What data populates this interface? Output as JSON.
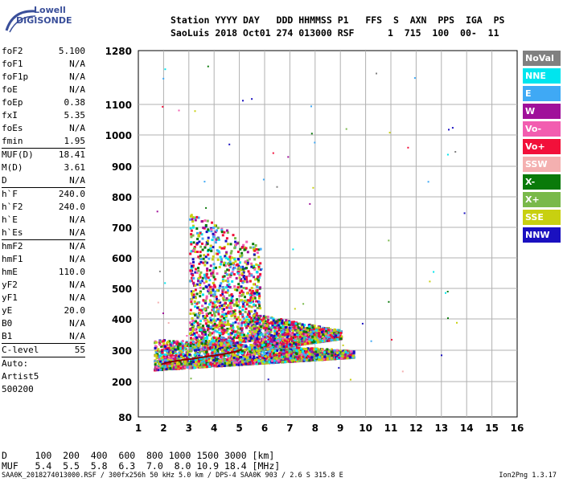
{
  "logo": {
    "line1": "Lowell",
    "line2": "DIGISONDE"
  },
  "header": {
    "line1": "Station YYYY DAY   DDD HHMMSS P1   FFS  S  AXN  PPS  IGA  PS",
    "line2": "SaoLuis 2018 Oct01 274 013000 RSF      1  715  100  00-  11"
  },
  "params": [
    {
      "name": "foF2",
      "value": "5.100"
    },
    {
      "name": "foF1",
      "value": "N/A"
    },
    {
      "name": "foF1p",
      "value": "N/A"
    },
    {
      "name": "foE",
      "value": "N/A"
    },
    {
      "name": "foEp",
      "value": "0.38"
    },
    {
      "name": "fxI",
      "value": "5.35"
    },
    {
      "name": "foEs",
      "value": "N/A"
    },
    {
      "name": "fmin",
      "value": "1.95"
    },
    {
      "name": "MUF(D)",
      "value": "18.41"
    },
    {
      "name": "M(D)",
      "value": "3.61"
    },
    {
      "name": "D",
      "value": "N/A"
    },
    {
      "name": "h`F",
      "value": "240.0"
    },
    {
      "name": "h`F2",
      "value": "240.0"
    },
    {
      "name": "h`E",
      "value": "N/A"
    },
    {
      "name": "h`Es",
      "value": "N/A"
    },
    {
      "name": "hmF2",
      "value": "N/A"
    },
    {
      "name": "hmF1",
      "value": "N/A"
    },
    {
      "name": "hmE",
      "value": "110.0"
    },
    {
      "name": "yF2",
      "value": "N/A"
    },
    {
      "name": "yF1",
      "value": "N/A"
    },
    {
      "name": "yE",
      "value": "20.0"
    },
    {
      "name": "B0",
      "value": "N/A"
    },
    {
      "name": "B1",
      "value": "N/A"
    },
    {
      "name": "C-level",
      "value": "55"
    },
    {
      "name": "Auto:",
      "value": ""
    },
    {
      "name": "Artist5",
      "value": ""
    },
    {
      "name": "500200",
      "value": ""
    }
  ],
  "legend": [
    {
      "label": "NoVal",
      "color": "#808080"
    },
    {
      "label": "NNE",
      "color": "#00e5ee"
    },
    {
      "label": "E",
      "color": "#3fa9f5"
    },
    {
      "label": "W",
      "color": "#a0109a"
    },
    {
      "label": "Vo-",
      "color": "#f25db0"
    },
    {
      "label": "Vo+",
      "color": "#f2103a"
    },
    {
      "label": "SSW",
      "color": "#f4b0b0"
    },
    {
      "label": "X-",
      "color": "#0a7a0a"
    },
    {
      "label": "X+",
      "color": "#79b94a"
    },
    {
      "label": "SSE",
      "color": "#c8d010"
    },
    {
      "label": "NNW",
      "color": "#1a10c0"
    }
  ],
  "bottom": {
    "line1": "D     100  200  400  600  800 1000 1500 3000 [km]",
    "line2": "MUF   5.4  5.5  5.8  6.3  7.0  8.0 10.9 18.4 [MHz]"
  },
  "footer": {
    "left": "SAA0K_2018274013000.RSF / 300fx256h 50 kHz 5.0 km / DPS-4 SAA0K 903 / 2.6 S 315.8 E",
    "right": "Ion2Png 1.3.17"
  },
  "chart_data": {
    "type": "scatter",
    "xlim": [
      1,
      16
    ],
    "ylim": [
      80,
      1280
    ],
    "xticks": [
      1,
      2,
      3,
      4,
      5,
      6,
      7,
      8,
      9,
      10,
      11,
      12,
      13,
      14,
      15,
      16
    ],
    "yticks": [
      80,
      200,
      300,
      400,
      500,
      600,
      700,
      800,
      900,
      1000,
      1100,
      1280
    ],
    "grid": true,
    "trace": {
      "x": [
        1.9,
        2.2,
        2.5,
        2.8,
        3.1,
        3.4,
        3.7,
        4.0,
        4.3,
        4.6,
        4.9,
        5.1
      ],
      "y": [
        255,
        262,
        266,
        270,
        272,
        276,
        280,
        283,
        287,
        291,
        297,
        303
      ]
    },
    "echo_clusters": [
      {
        "x": [
          1.6,
          9.5
        ],
        "y": [
          240,
          340
        ],
        "density": 1.0
      },
      {
        "x": [
          3.0,
          5.8
        ],
        "y": [
          300,
          760
        ],
        "density": 0.5
      },
      {
        "x": [
          5.5,
          9.0
        ],
        "y": [
          300,
          420
        ],
        "density": 0.6
      }
    ]
  }
}
